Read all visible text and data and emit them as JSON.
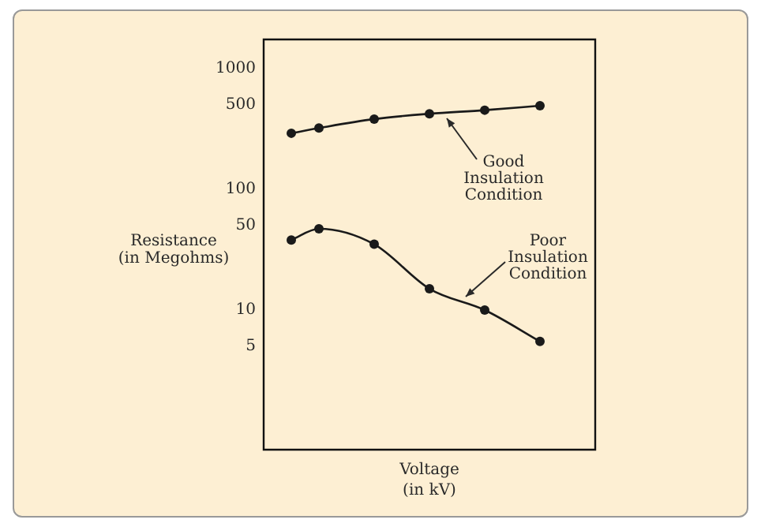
{
  "chart_data": {
    "type": "line",
    "xlabel": "Voltage\n(in kV)",
    "ylabel": "Resistance\n(in Megohms)",
    "categories": [
      null,
      null,
      null,
      null,
      null,
      null,
      null,
      null,
      null,
      null
    ],
    "series": [
      {
        "color": "#1a1a1a",
        "values": [
          290,
          320,
          null,
          380,
          null,
          420,
          null,
          450,
          null,
          490
        ]
      },
      {
        "color": "#1a1a1a",
        "values": [
          38,
          47,
          null,
          35,
          null,
          15,
          null,
          10,
          null,
          5.5
        ]
      }
    ],
    "ylim": [
      0.73,
      1730
    ],
    "yticks": [
      5,
      10,
      50,
      100,
      500,
      1000
    ],
    "log": true,
    "grid": false,
    "legend": false,
    "tick_labels": "y",
    "marker": "circle",
    "line_style": "solid",
    "annotations": [
      "Good\nInsulation\nCondition",
      "Poor\nInsulation\nCondition"
    ]
  }
}
